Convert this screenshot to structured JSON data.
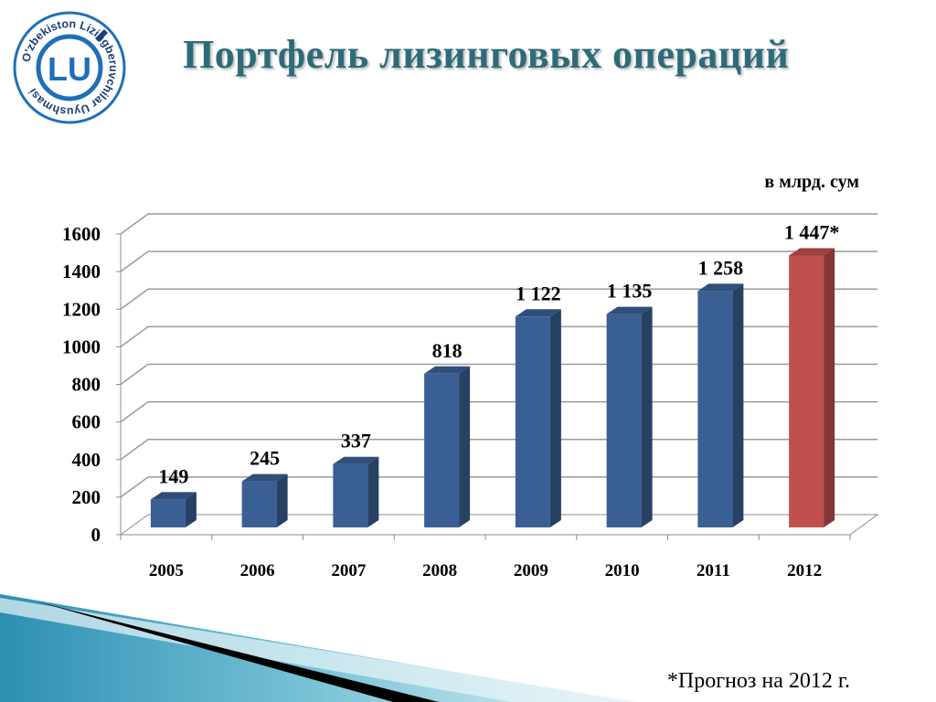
{
  "slide": {
    "title": "Портфель лизинговых операций",
    "footnote": "*Прогноз на 2012 г.",
    "logo": {
      "initials": "LU",
      "ring_text": "O'zbekiston Lizingberuvchilar Uyushmasi",
      "colors": {
        "blue": "#1f6fb7",
        "dark": "#1a3f7a"
      }
    }
  },
  "chart_data": {
    "type": "bar",
    "title": "",
    "unit_label": "в млрд. сум",
    "categories": [
      "2005",
      "2006",
      "2007",
      "2008",
      "2009",
      "2010",
      "2011",
      "2012"
    ],
    "values": [
      149,
      245,
      337,
      818,
      1122,
      1135,
      1258,
      1447
    ],
    "data_labels": [
      "149",
      "245",
      "337",
      "818",
      "1 122",
      "1 135",
      "1 258",
      "1 447*"
    ],
    "y_ticks": [
      "0",
      "200",
      "400",
      "600",
      "800",
      "1000",
      "1200",
      "1400",
      "1600"
    ],
    "ylim": [
      0,
      1600
    ],
    "grid": true,
    "style": "3d",
    "colors": {
      "actual": "#3a5f95",
      "forecast": "#c0504d"
    },
    "forecast_category": "2012"
  }
}
